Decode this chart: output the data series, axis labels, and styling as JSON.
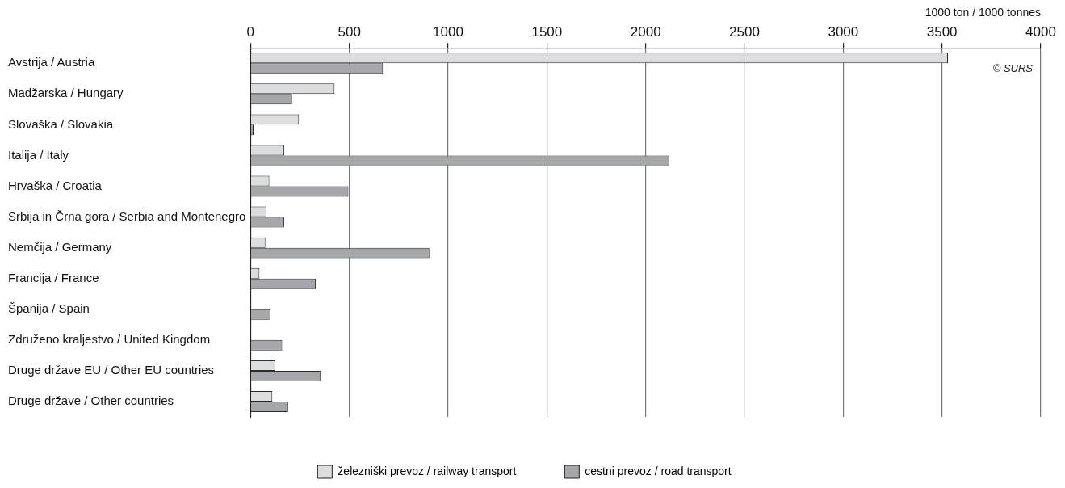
{
  "chart_data": {
    "type": "bar",
    "orientation": "horizontal",
    "xlabel": "1000 ton / 1000 tonnes",
    "categories": [
      "Avstrija / Austria",
      "Madžarska / Hungary",
      "Slovaška / Slovakia",
      "Italija / Italy",
      "Hrvaška / Croatia",
      "Srbija in Črna gora / Serbia and Montenegro",
      "Nemčija / Germany",
      "Francija / France",
      "Španija / Spain",
      "Združeno kraljestvo / United Kingdom",
      "Druge države EU / Other EU countries",
      "Druge države / Other countries"
    ],
    "series": [
      {
        "name": "železniški prevoz / railway transport",
        "color": "#dcdddf",
        "values": [
          3530,
          425,
          245,
          170,
          95,
          80,
          75,
          45,
          null,
          null,
          125,
          110
        ]
      },
      {
        "name": "cestni prevoz / road transport",
        "color": "#a6a7ab",
        "values": [
          670,
          210,
          15,
          2120,
          495,
          170,
          905,
          330,
          100,
          160,
          355,
          190
        ]
      }
    ],
    "xlim": [
      0,
      4000
    ],
    "xticks": [
      0,
      500,
      1000,
      1500,
      2000,
      2500,
      3000,
      3500,
      4000
    ],
    "grid": "x",
    "legend": "bottom",
    "annotations": [
      "© SURS"
    ]
  }
}
